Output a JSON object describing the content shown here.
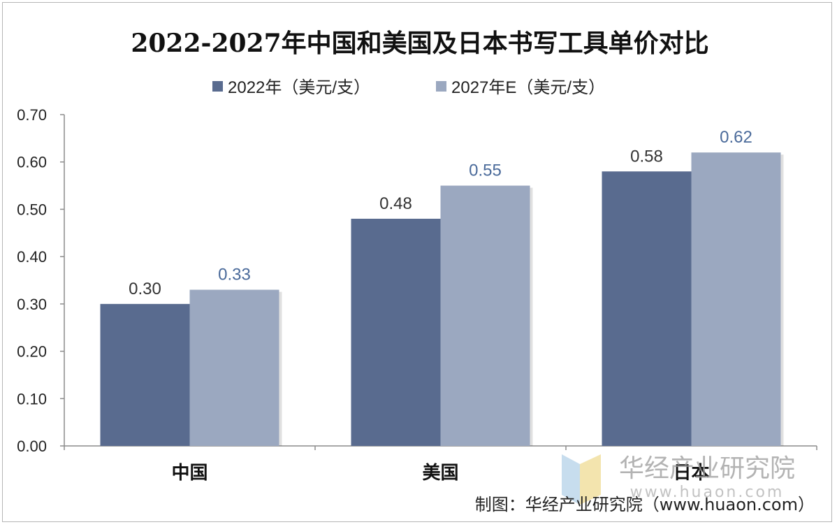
{
  "chart_data": {
    "type": "bar",
    "title": "2022-2027年中国和美国及日本书写工具单价对比",
    "categories": [
      "中国",
      "美国",
      "日本"
    ],
    "series": [
      {
        "name": "2022年（美元/支）",
        "color": "#596b8f",
        "values": [
          0.3,
          0.48,
          0.58
        ],
        "labels": [
          "0.30",
          "0.48",
          "0.58"
        ],
        "label_color": "#333333"
      },
      {
        "name": "2027年E（美元/支）",
        "color": "#9ba8c0",
        "values": [
          0.33,
          0.55,
          0.62
        ],
        "labels": [
          "0.33",
          "0.55",
          "0.62"
        ],
        "label_color": "#4a6a9a"
      }
    ],
    "ylim": [
      0,
      0.7
    ],
    "yticks": [
      "0.00",
      "0.10",
      "0.20",
      "0.30",
      "0.40",
      "0.50",
      "0.60",
      "0.70"
    ],
    "xlabel": "",
    "ylabel": "",
    "grid": false,
    "legend_position": "top-center"
  },
  "watermark": {
    "name": "华经产业研究院",
    "url": "www.huaon.com"
  },
  "source_note": "制图：华经产业研究院（www.huaon.com）"
}
